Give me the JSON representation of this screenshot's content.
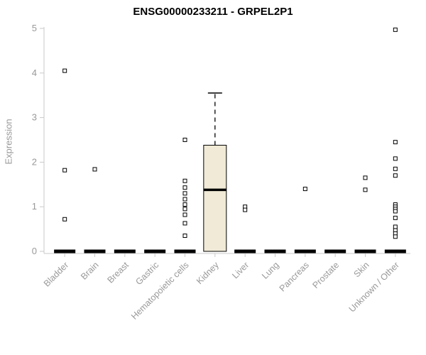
{
  "chart_data": {
    "type": "boxplot",
    "title": "ENSG00000233211 - GRPEL2P1",
    "ylabel": "Expression",
    "ylim": [
      0,
      5
    ],
    "yticks": [
      0,
      1,
      2,
      3,
      4,
      5
    ],
    "categories": [
      "Bladder",
      "Brain",
      "Breast",
      "Gastric",
      "Hematopoietic cells",
      "Kidney",
      "Liver",
      "Lung",
      "Pancreas",
      "Prostate",
      "Skin",
      "Unknown / Other"
    ],
    "boxes": [
      {
        "category": "Bladder",
        "q1": 0,
        "median": 0,
        "q3": 0,
        "whisker_low": 0,
        "whisker_high": 0,
        "outliers": [
          4.05,
          1.82,
          0.72
        ]
      },
      {
        "category": "Brain",
        "q1": 0,
        "median": 0,
        "q3": 0,
        "whisker_low": 0,
        "whisker_high": 0,
        "outliers": [
          1.84
        ]
      },
      {
        "category": "Breast",
        "q1": 0,
        "median": 0,
        "q3": 0,
        "whisker_low": 0,
        "whisker_high": 0,
        "outliers": []
      },
      {
        "category": "Gastric",
        "q1": 0,
        "median": 0,
        "q3": 0,
        "whisker_low": 0,
        "whisker_high": 0,
        "outliers": []
      },
      {
        "category": "Hematopoietic cells",
        "q1": 0,
        "median": 0,
        "q3": 0,
        "whisker_low": 0,
        "whisker_high": 0,
        "outliers": [
          2.5,
          1.58,
          1.43,
          1.3,
          1.17,
          1.05,
          0.95,
          0.82,
          0.63,
          0.35
        ]
      },
      {
        "category": "Kidney",
        "q1": 0,
        "median": 1.38,
        "q3": 2.38,
        "whisker_low": 0,
        "whisker_high": 3.55,
        "outliers": []
      },
      {
        "category": "Liver",
        "q1": 0,
        "median": 0,
        "q3": 0,
        "whisker_low": 0,
        "whisker_high": 0,
        "outliers": [
          1.0,
          0.93
        ]
      },
      {
        "category": "Lung",
        "q1": 0,
        "median": 0,
        "q3": 0,
        "whisker_low": 0,
        "whisker_high": 0,
        "outliers": []
      },
      {
        "category": "Pancreas",
        "q1": 0,
        "median": 0,
        "q3": 0,
        "whisker_low": 0,
        "whisker_high": 0,
        "outliers": [
          1.4
        ]
      },
      {
        "category": "Prostate",
        "q1": 0,
        "median": 0,
        "q3": 0,
        "whisker_low": 0,
        "whisker_high": 0,
        "outliers": []
      },
      {
        "category": "Skin",
        "q1": 0,
        "median": 0,
        "q3": 0,
        "whisker_low": 0,
        "whisker_high": 0,
        "outliers": [
          1.65,
          1.38
        ]
      },
      {
        "category": "Unknown / Other",
        "q1": 0,
        "median": 0,
        "q3": 0,
        "whisker_low": 0,
        "whisker_high": 0,
        "outliers": [
          4.97,
          2.45,
          2.08,
          1.85,
          1.7,
          1.05,
          1.0,
          0.95,
          0.9,
          0.75,
          0.55,
          0.47,
          0.4,
          0.33
        ]
      }
    ],
    "style": {
      "box_fill": "#f0ead6",
      "box_stroke": "#000000",
      "median_color": "#000000",
      "zero_bar_color": "#000000",
      "outlier_stroke": "#000000",
      "outlier_fill": "#ffffff",
      "axis_color": "#c9c9c9",
      "label_color": "#999999",
      "title_color": "#000000"
    },
    "legend": "none",
    "grid": "off"
  }
}
